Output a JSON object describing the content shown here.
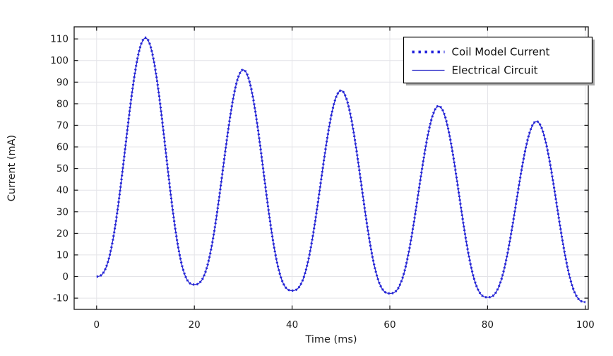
{
  "window": {
    "background": "#ffffff"
  },
  "chart_data": {
    "type": "line",
    "title": "",
    "xlabel": "Time (ms)",
    "ylabel": "Current (mA)",
    "xlim": [
      -4.6,
      100.6
    ],
    "ylim": [
      -15.2,
      115.6
    ],
    "xticks": [
      0,
      20,
      40,
      60,
      80,
      100
    ],
    "yticks": [
      -10,
      0,
      10,
      20,
      30,
      40,
      50,
      60,
      70,
      80,
      90,
      100,
      110
    ],
    "grid": true,
    "legend": {
      "position": "top-right",
      "background": "#ffffff",
      "border": "#000000"
    },
    "x_extremes": [
      0,
      10,
      20,
      30,
      40,
      50,
      60,
      70,
      80,
      90,
      100
    ],
    "series": [
      {
        "name": "Electrical Circuit",
        "style": "solid",
        "color": "#2B2BC8",
        "line_width": 1.3,
        "values_at_extremes": [
          0,
          110.4,
          -3.7,
          95.7,
          -6.5,
          86.1,
          -7.8,
          78.9,
          -9.6,
          71.8,
          -11.8
        ]
      },
      {
        "name": "Coil Model Current",
        "style": "dotted",
        "color": "#2222DC",
        "line_width": 3.2,
        "values_at_extremes": [
          0,
          110.6,
          -3.7,
          95.8,
          -6.5,
          86.2,
          -7.8,
          79.0,
          -9.6,
          71.9,
          -11.8
        ]
      }
    ],
    "legend_order": [
      "Coil Model Current",
      "Electrical Circuit"
    ],
    "interpolation": "smooth decaying oscillation, period 20 ms; values between listed extremes follow rounded-triangle flanks; the two series coincide visually"
  },
  "colors": {
    "grid": "#E4E4E8",
    "frame": "#161616",
    "tick_label": "#1A1A1A",
    "axis_title": "#1A1A1A",
    "legend_shadow": "#A8A8A8"
  }
}
